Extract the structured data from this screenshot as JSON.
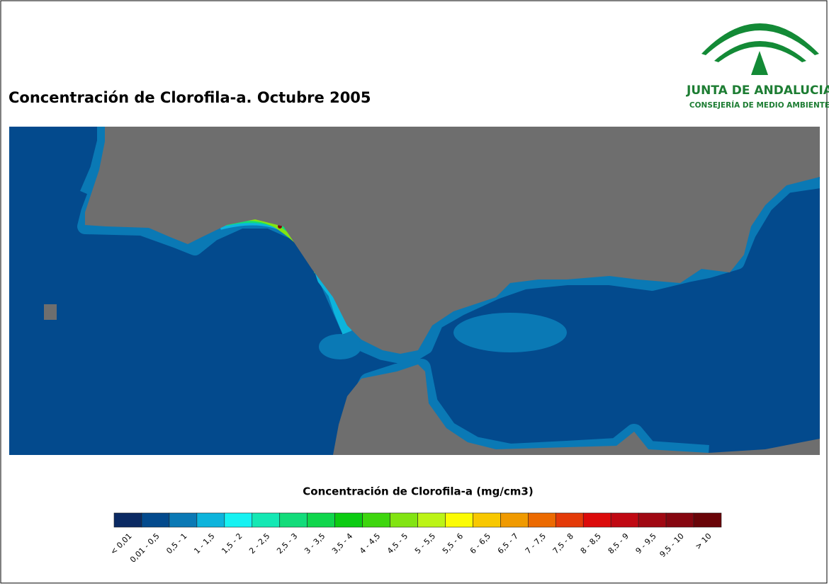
{
  "header": {
    "title": "Concentración de Clorofila-a. Octubre 2005"
  },
  "logo": {
    "name": "JUNTA DE ANDALUCIA",
    "subtitle": "CONSEJERÍA DE MEDIO AMBIENTE"
  },
  "legend": {
    "title": "Concentración de Clorofila-a (mg/cm3)",
    "items": [
      {
        "label": "< 0,01",
        "color": "#0b2a63"
      },
      {
        "label": "0,01 - 0,5",
        "color": "#034a8d"
      },
      {
        "label": "0,5 - 1",
        "color": "#0a79b5"
      },
      {
        "label": "1 - 1,5",
        "color": "#0db4dc"
      },
      {
        "label": "1,5 - 2",
        "color": "#16f2f2"
      },
      {
        "label": "2 - 2,5",
        "color": "#14e8b4"
      },
      {
        "label": "2,5 - 3",
        "color": "#12dc7a"
      },
      {
        "label": "3 - 3,5",
        "color": "#10d64c"
      },
      {
        "label": "3,5 - 4",
        "color": "#0ccc12"
      },
      {
        "label": "4 - 4,5",
        "color": "#3ed60e"
      },
      {
        "label": "4,5 - 5",
        "color": "#82e412"
      },
      {
        "label": "5 - 5,5",
        "color": "#bcf416"
      },
      {
        "label": "5,5 - 6",
        "color": "#fcfc04"
      },
      {
        "label": "6 - 6,5",
        "color": "#f8c800"
      },
      {
        "label": "6,5 - 7",
        "color": "#f09a00"
      },
      {
        "label": "7 - 7,5",
        "color": "#ec6a00"
      },
      {
        "label": "7,5 - 8",
        "color": "#e43a08"
      },
      {
        "label": "8 - 8,5",
        "color": "#dc0a0a"
      },
      {
        "label": "8,5 - 9",
        "color": "#c00812"
      },
      {
        "label": "9 - 9,5",
        "color": "#a00812"
      },
      {
        "label": "9,5 - 10",
        "color": "#860610"
      },
      {
        "label": "> 10",
        "color": "#6a0408"
      }
    ]
  }
}
